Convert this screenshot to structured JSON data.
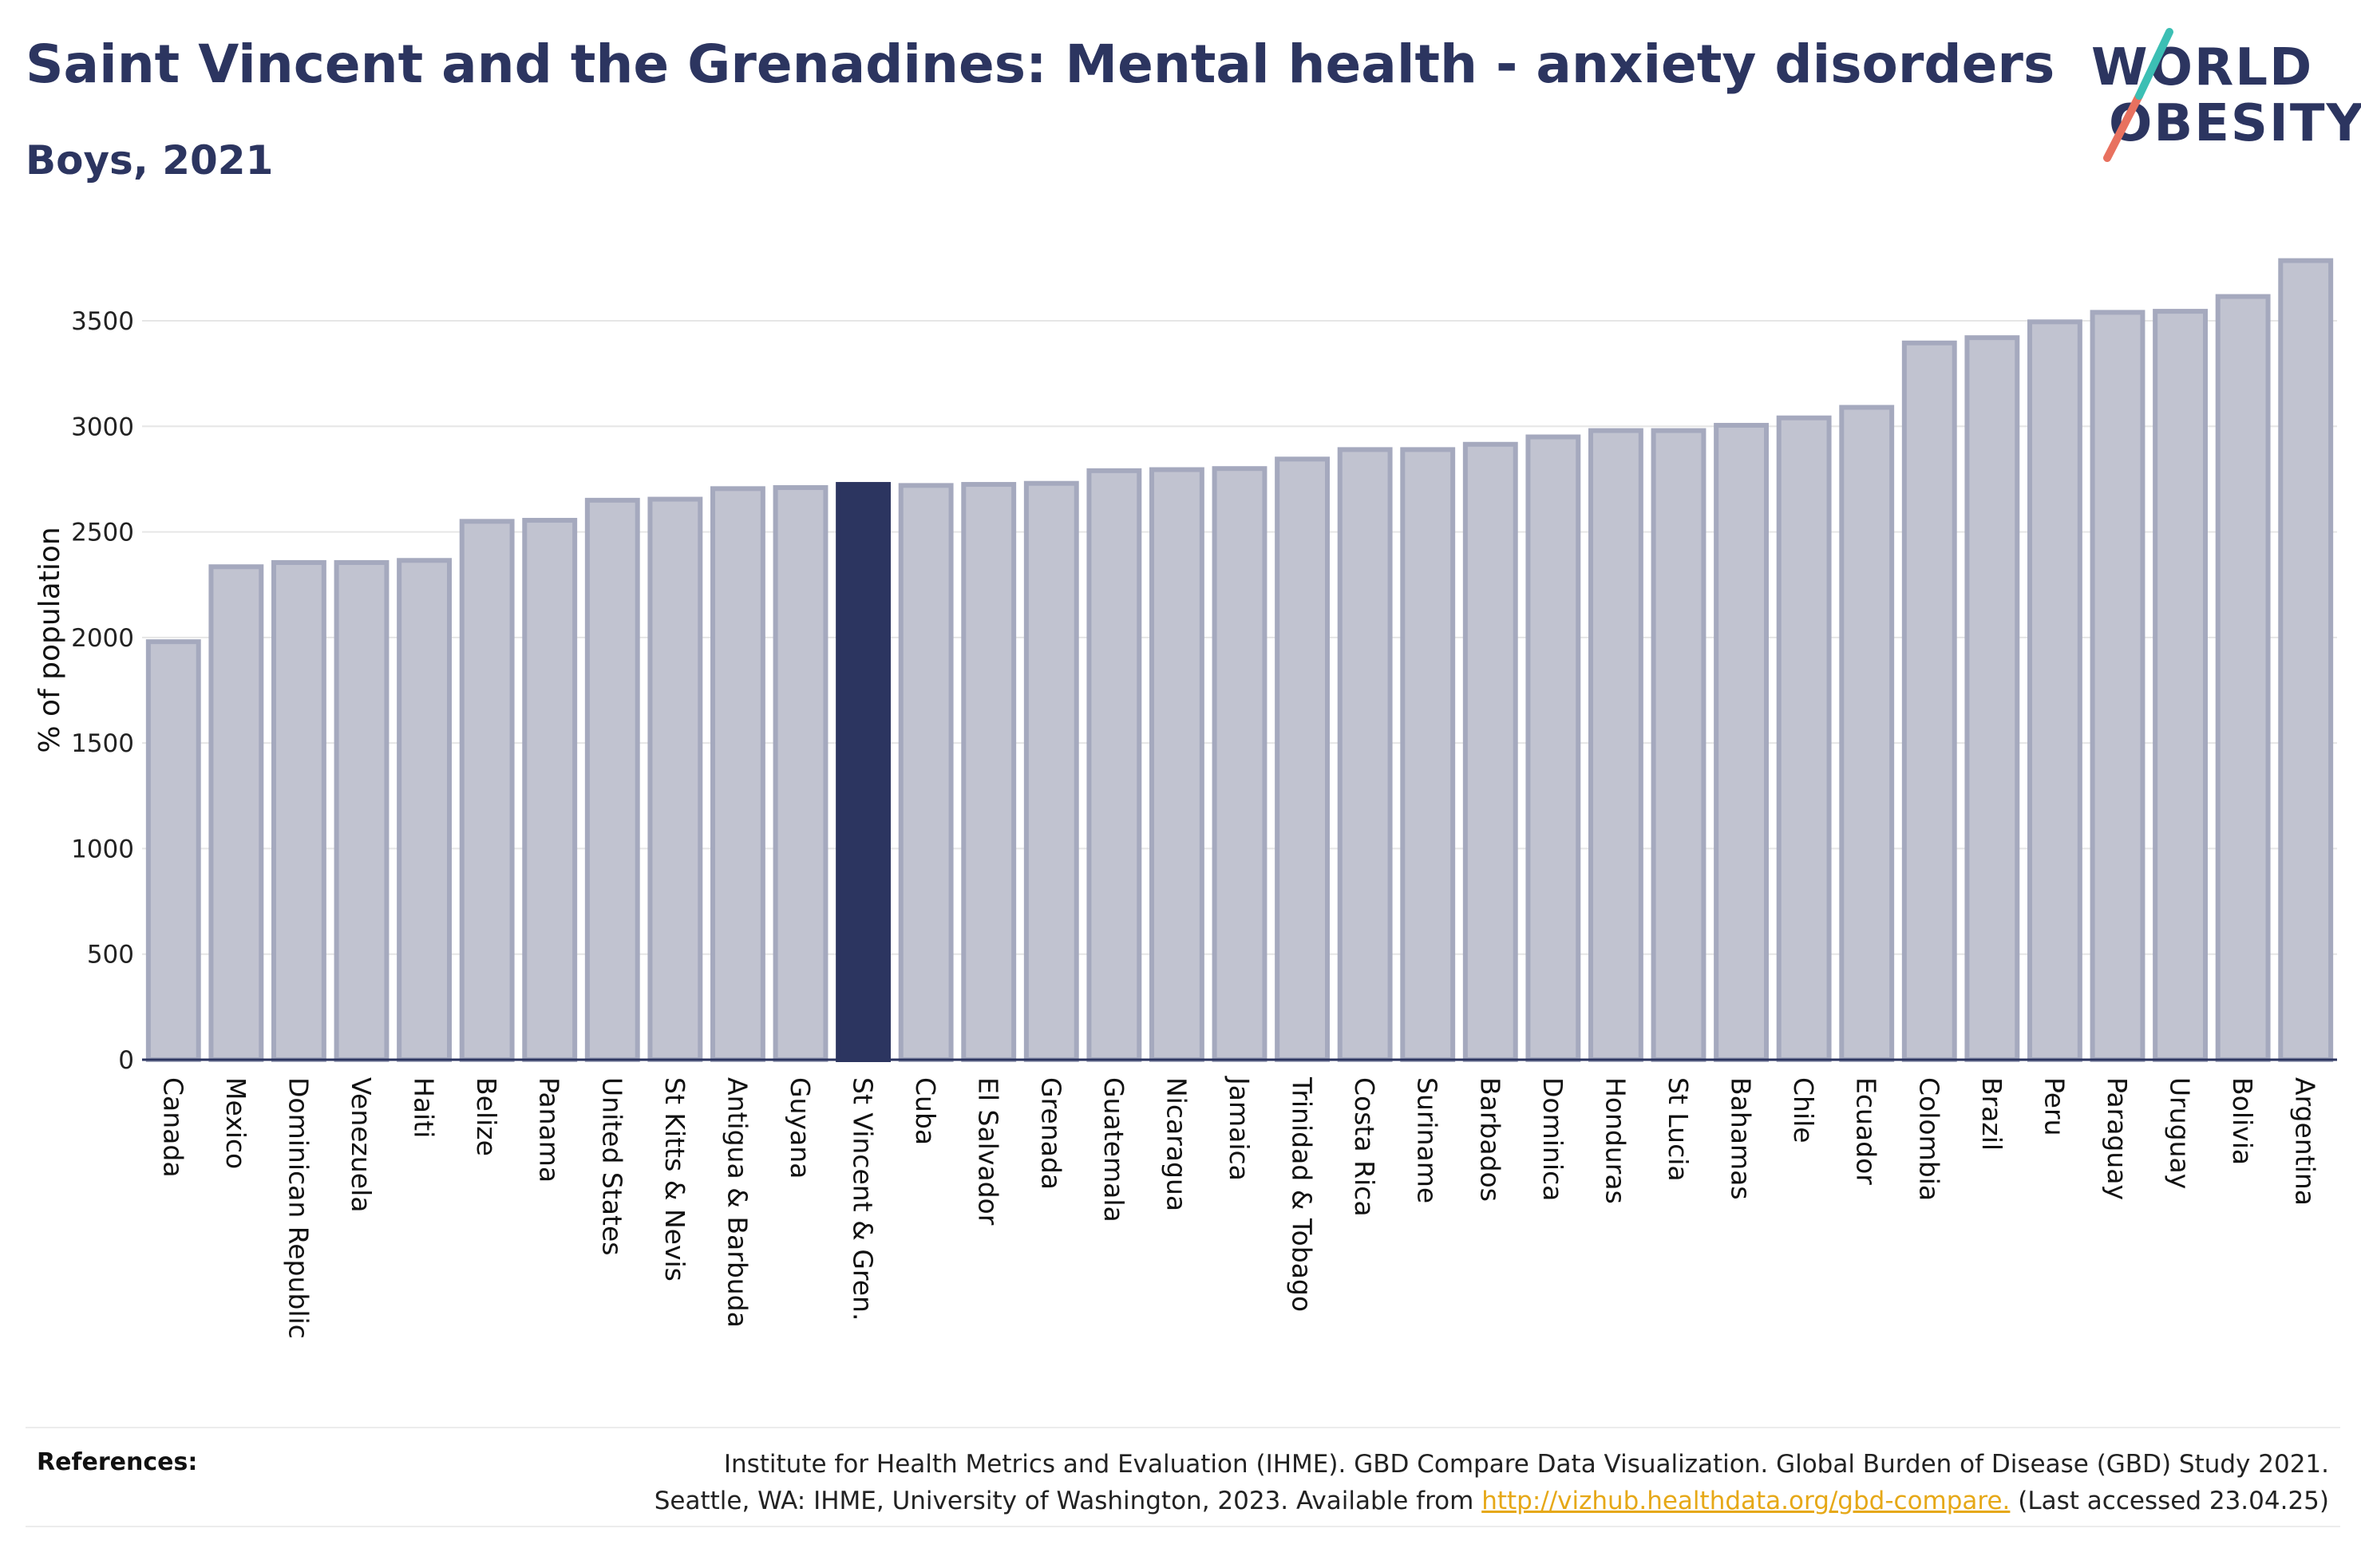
{
  "title": "Saint Vincent and the Grenadines: Mental health - anxiety disorders",
  "subtitle": "Boys, 2021",
  "logo": {
    "line1": "WORLD",
    "line2": "OBESITY"
  },
  "colors": {
    "bar_fill": "#c1c3d0",
    "bar_stroke": "#a5a9be",
    "highlight": "#2c3560",
    "logo_teal": "#3cbfb4",
    "logo_coral": "#e8715f",
    "link": "#e6a817"
  },
  "references": {
    "label": "References:",
    "line1": "Institute for Health Metrics and Evaluation (IHME). GBD Compare Data Visualization. Global Burden of Disease (GBD) Study 2021.",
    "line2_prefix": "Seattle, WA: IHME, University of Washington, 2023. Available from ",
    "link": "http://vizhub.healthdata.org/gbd-compare.",
    "line2_suffix": " (Last accessed 23.04.25)"
  },
  "chart_data": {
    "type": "bar",
    "ylabel": "% of population",
    "ylim": [
      0,
      3800
    ],
    "yticks": [
      0,
      500,
      1000,
      1500,
      2000,
      2500,
      3000,
      3500
    ],
    "grid": true,
    "highlight_category": "St Vincent & Gren.",
    "categories": [
      "Canada",
      "Mexico",
      "Dominican Republic",
      "Venezuela",
      "Haiti",
      "Belize",
      "Panama",
      "United States",
      "St Kitts & Nevis",
      "Antigua & Barbuda",
      "Guyana",
      "St Vincent & Gren.",
      "Cuba",
      "El Salvador",
      "Grenada",
      "Guatemala",
      "Nicaragua",
      "Jamaica",
      "Trinidad & Tobago",
      "Costa Rica",
      "Suriname",
      "Barbados",
      "Dominica",
      "Honduras",
      "St Lucia",
      "Bahamas",
      "Chile",
      "Ecuador",
      "Colombia",
      "Brazil",
      "Peru",
      "Paraguay",
      "Uruguay",
      "Bolivia",
      "Argentina"
    ],
    "values": [
      1980,
      2335,
      2355,
      2355,
      2365,
      2550,
      2555,
      2650,
      2655,
      2705,
      2710,
      2725,
      2720,
      2725,
      2730,
      2790,
      2795,
      2800,
      2845,
      2890,
      2890,
      2915,
      2950,
      2980,
      2980,
      3005,
      3040,
      3090,
      3395,
      3420,
      3495,
      3540,
      3545,
      3615,
      3785
    ]
  }
}
